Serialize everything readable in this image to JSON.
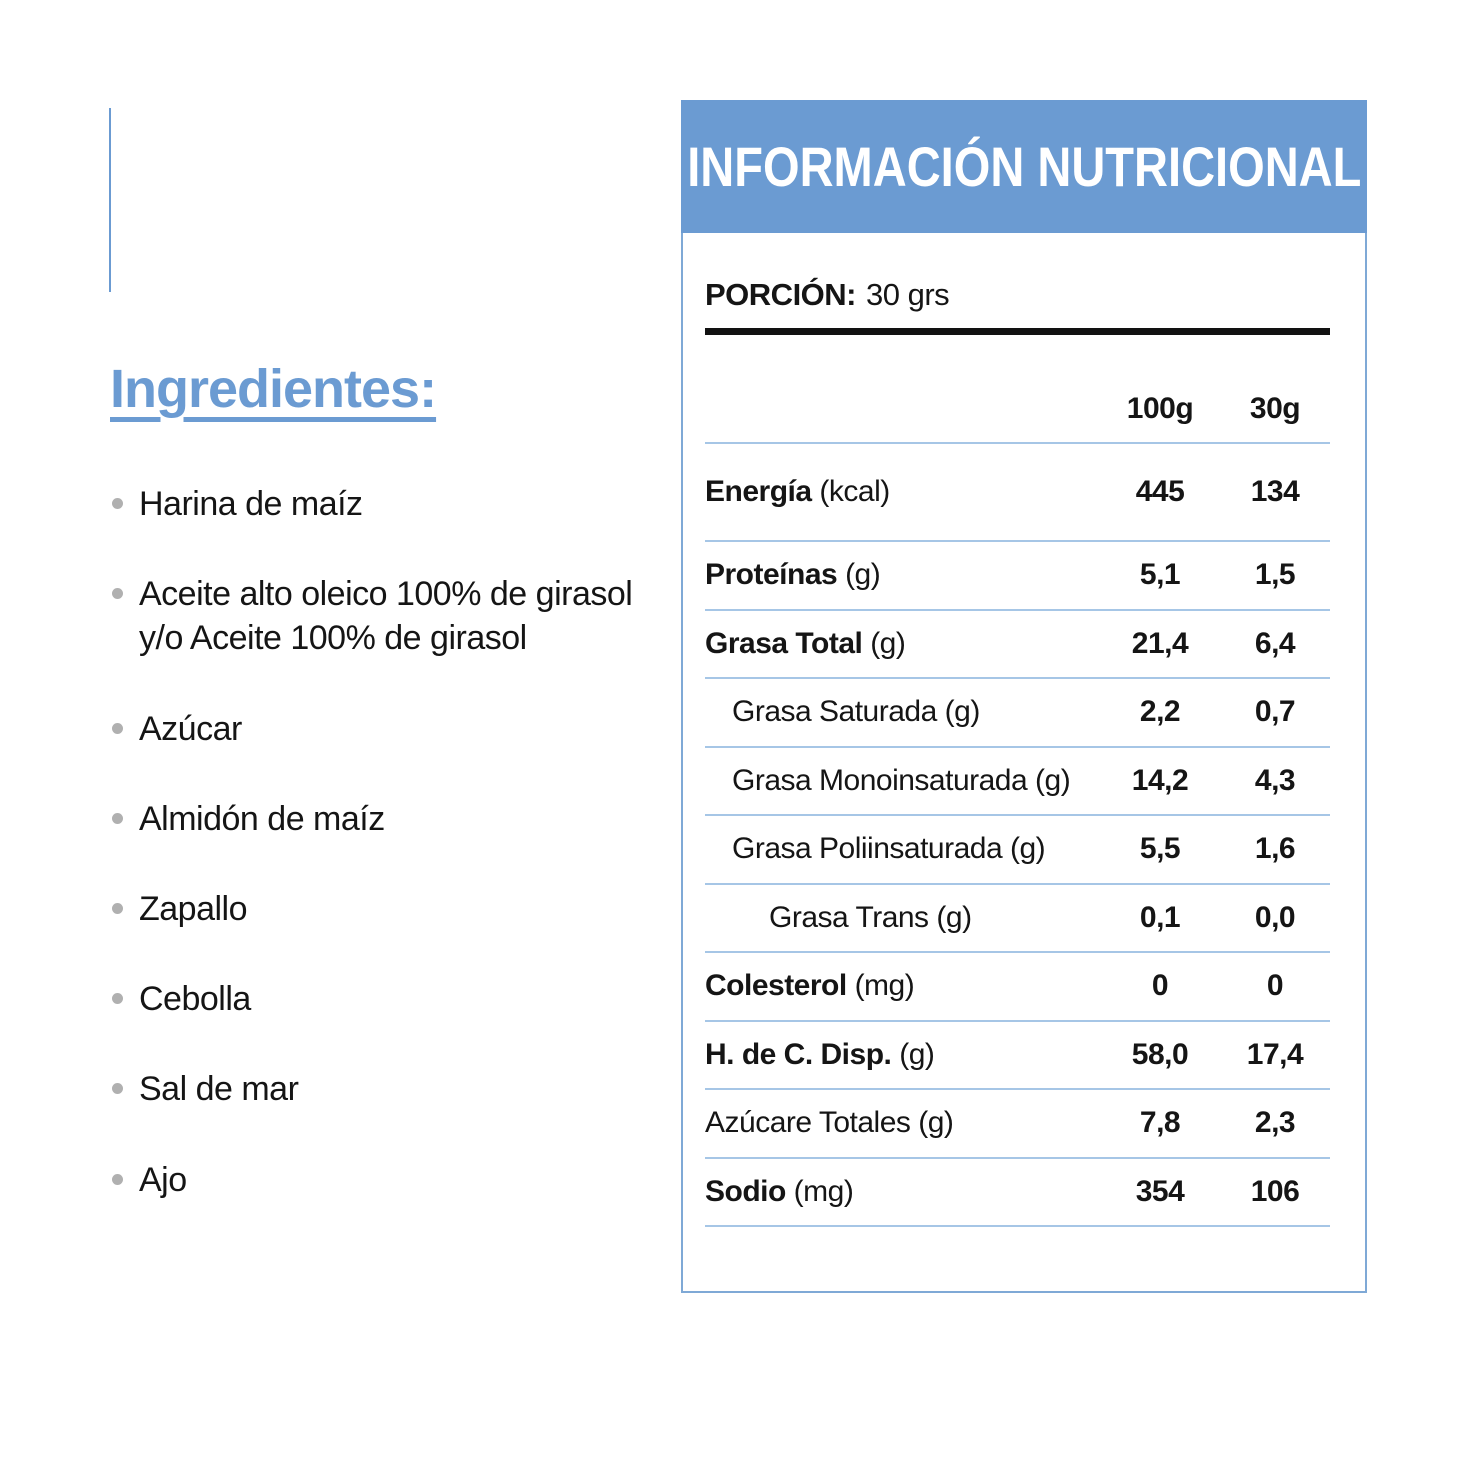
{
  "colors": {
    "accent_blue": "#6B9BD2",
    "panel_border_blue": "#7FA9D6",
    "row_separator_blue": "#A6C6E6",
    "text_black": "#151515",
    "bullet_gray": "#B0B0B0"
  },
  "ingredients": {
    "heading": "Ingredientes:",
    "items": [
      "Harina de maíz",
      "Aceite alto oleico 100% de girasol\ny/o Aceite 100% de girasol",
      "Azúcar",
      "Almidón de maíz",
      "Zapallo",
      "Cebolla",
      "Sal de mar",
      "Ajo"
    ]
  },
  "nutrition": {
    "title": "INFORMACIÓN NUTRICIONAL",
    "portion_label": "PORCIÓN:",
    "portion_value": "30 grs",
    "columns": [
      "100g",
      "30g"
    ],
    "rows": [
      {
        "label": "Energía",
        "unit": "(kcal)",
        "bold": true,
        "indent": 0,
        "v100": "445",
        "v30": "134"
      },
      {
        "label": "Proteínas",
        "unit": "(g)",
        "bold": true,
        "indent": 0,
        "v100": "5,1",
        "v30": "1,5"
      },
      {
        "label": "Grasa Total",
        "unit": "(g)",
        "bold": true,
        "indent": 0,
        "v100": "21,4",
        "v30": "6,4"
      },
      {
        "label": "Grasa Saturada",
        "unit": "(g)",
        "bold": false,
        "indent": 1,
        "v100": "2,2",
        "v30": "0,7"
      },
      {
        "label": "Grasa Monoinsaturada",
        "unit": "(g)",
        "bold": false,
        "indent": 1,
        "v100": "14,2",
        "v30": "4,3"
      },
      {
        "label": "Grasa Poliinsaturada",
        "unit": "(g)",
        "bold": false,
        "indent": 1,
        "v100": "5,5",
        "v30": "1,6"
      },
      {
        "label": "Grasa Trans",
        "unit": "(g)",
        "bold": false,
        "indent": 2,
        "v100": "0,1",
        "v30": "0,0"
      },
      {
        "label": "Colesterol",
        "unit": "(mg)",
        "bold": true,
        "indent": 0,
        "v100": "0",
        "v30": "0"
      },
      {
        "label": "H. de C. Disp.",
        "unit": "(g)",
        "bold": true,
        "indent": 0,
        "v100": "58,0",
        "v30": "17,4"
      },
      {
        "label": "Azúcare Totales",
        "unit": "(g)",
        "bold": false,
        "indent": 0,
        "v100": "7,8",
        "v30": "2,3"
      },
      {
        "label": "Sodio",
        "unit": "(mg)",
        "bold": true,
        "indent": 0,
        "v100": "354",
        "v30": "106"
      }
    ]
  }
}
